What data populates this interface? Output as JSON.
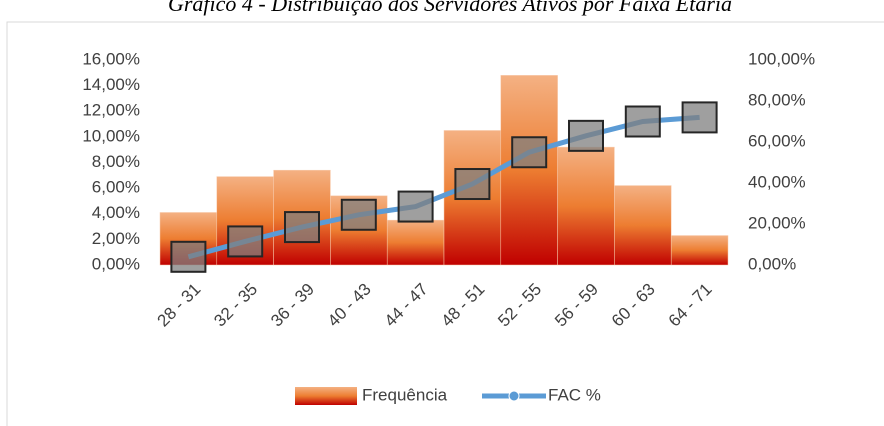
{
  "chart_data": {
    "type": "bar_line",
    "title": "Gráfico 4 - Distribuição dos Servidores Ativos por Faixa Etária",
    "categories": [
      "28 - 31",
      "32 - 35",
      "36 - 39",
      "40 - 43",
      "44 - 47",
      "48 - 51",
      "52 - 55",
      "56 - 59",
      "60 - 63",
      "64 - 71"
    ],
    "series": [
      {
        "name": "Frequência",
        "color": "#ed7d31",
        "values": [
          4.1,
          6.9,
          7.4,
          5.4,
          3.5,
          10.5,
          14.8,
          9.2,
          6.2,
          2.3
        ]
      },
      {
        "name": "FAC %",
        "color": "#5b9bd5",
        "axis": "y2",
        "values": [
          4,
          11.5,
          18.5,
          24.5,
          28.5,
          39.5,
          55,
          63,
          70,
          72
        ]
      }
    ],
    "ylim": [
      0,
      16
    ],
    "yticks": [
      {
        "value": 0,
        "label": "0,00%"
      },
      {
        "value": 2,
        "label": "2,00%"
      },
      {
        "value": 4,
        "label": "4,00%"
      },
      {
        "value": 6,
        "label": "6,00%"
      },
      {
        "value": 8,
        "label": "8,00%"
      },
      {
        "value": 10,
        "label": "10,00%"
      },
      {
        "value": 12,
        "label": "12,00%"
      },
      {
        "value": 14,
        "label": "14,00%"
      },
      {
        "value": 16,
        "label": "16,00%"
      }
    ],
    "y2lim": [
      0,
      100
    ],
    "y2ticks": [
      {
        "value": 0,
        "label": "0,00%"
      },
      {
        "value": 20,
        "label": "20,00%"
      },
      {
        "value": 40,
        "label": "40,00%"
      },
      {
        "value": 60,
        "label": "60,00%"
      },
      {
        "value": 80,
        "label": "80,00%"
      },
      {
        "value": 100,
        "label": "100,00%"
      }
    ],
    "legend": "bottom"
  }
}
